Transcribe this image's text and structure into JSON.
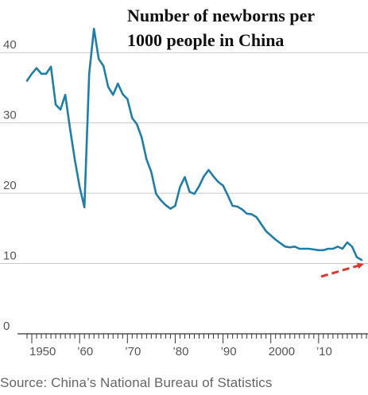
{
  "chart_data": {
    "type": "line",
    "title_line1": "Number of newborns per",
    "title_line2": "1000 people in China",
    "source": "Source: China’s National Bureau of Statistics",
    "xlim": [
      1949,
      2020
    ],
    "ylim": [
      0,
      45
    ],
    "yticks": [
      {
        "value": 0,
        "label": "0"
      },
      {
        "value": 10,
        "label": "10"
      },
      {
        "value": 20,
        "label": "20"
      },
      {
        "value": 30,
        "label": "30"
      },
      {
        "value": 40,
        "label": "40"
      }
    ],
    "xticks": [
      {
        "value": 1950,
        "label": "1950"
      },
      {
        "value": 1960,
        "label": "’60"
      },
      {
        "value": 1970,
        "label": "’70"
      },
      {
        "value": 1980,
        "label": "’80"
      },
      {
        "value": 1990,
        "label": "’90"
      },
      {
        "value": 2000,
        "label": "2000"
      },
      {
        "value": 2010,
        "label": "’10"
      }
    ],
    "grid": true,
    "colors": {
      "line": "#1f7ea8",
      "grid": "#c8c8c8",
      "axis": "#333333",
      "arrow": "#d93a2f"
    },
    "series": [
      {
        "x": [
          1949,
          1950,
          1951,
          1952,
          1953,
          1954,
          1955,
          1956,
          1957,
          1958,
          1959,
          1960,
          1961,
          1962,
          1963,
          1964,
          1965,
          1966,
          1967,
          1968,
          1969,
          1970,
          1971,
          1972,
          1973,
          1974,
          1975,
          1976,
          1977,
          1978,
          1979,
          1980,
          1981,
          1982,
          1983,
          1984,
          1985,
          1986,
          1987,
          1988,
          1989,
          1990,
          1991,
          1992,
          1993,
          1994,
          1995,
          1996,
          1997,
          1998,
          1999,
          2000,
          2001,
          2002,
          2003,
          2004,
          2005,
          2006,
          2007,
          2008,
          2009,
          2010,
          2011,
          2012,
          2013,
          2014,
          2015,
          2016,
          2017,
          2018,
          2019
        ],
        "y": [
          36.0,
          37.0,
          37.8,
          37.0,
          37.0,
          38.0,
          32.6,
          31.9,
          34.0,
          29.2,
          24.8,
          20.9,
          18.0,
          37.0,
          43.4,
          39.1,
          38.1,
          35.1,
          34.0,
          35.6,
          34.1,
          33.4,
          30.7,
          29.8,
          27.9,
          24.8,
          23.0,
          19.9,
          19.0,
          18.3,
          17.8,
          18.2,
          20.9,
          22.3,
          20.2,
          19.9,
          21.0,
          22.4,
          23.3,
          22.4,
          21.6,
          21.1,
          19.7,
          18.2,
          18.1,
          17.7,
          17.1,
          17.0,
          16.6,
          15.6,
          14.6,
          14.0,
          13.4,
          12.9,
          12.4,
          12.3,
          12.4,
          12.1,
          12.1,
          12.1,
          12.0,
          11.9,
          11.9,
          12.1,
          12.1,
          12.4,
          12.1,
          13.0,
          12.4,
          10.9,
          10.5
        ]
      }
    ]
  }
}
